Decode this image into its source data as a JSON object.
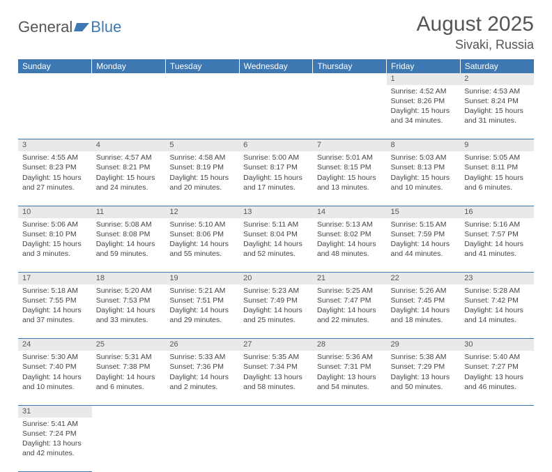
{
  "logo": {
    "part1": "General",
    "part2": "Blue"
  },
  "title": "August 2025",
  "location": "Sivaki, Russia",
  "colors": {
    "header_bg": "#3e78b2",
    "header_text": "#ffffff",
    "daynum_bg": "#e9e9e9",
    "row_border": "#3e78b2",
    "text": "#444444"
  },
  "weekdays": [
    "Sunday",
    "Monday",
    "Tuesday",
    "Wednesday",
    "Thursday",
    "Friday",
    "Saturday"
  ],
  "weeks": [
    [
      null,
      null,
      null,
      null,
      null,
      {
        "n": "1",
        "sr": "Sunrise: 4:52 AM",
        "ss": "Sunset: 8:26 PM",
        "d1": "Daylight: 15 hours",
        "d2": "and 34 minutes."
      },
      {
        "n": "2",
        "sr": "Sunrise: 4:53 AM",
        "ss": "Sunset: 8:24 PM",
        "d1": "Daylight: 15 hours",
        "d2": "and 31 minutes."
      }
    ],
    [
      {
        "n": "3",
        "sr": "Sunrise: 4:55 AM",
        "ss": "Sunset: 8:23 PM",
        "d1": "Daylight: 15 hours",
        "d2": "and 27 minutes."
      },
      {
        "n": "4",
        "sr": "Sunrise: 4:57 AM",
        "ss": "Sunset: 8:21 PM",
        "d1": "Daylight: 15 hours",
        "d2": "and 24 minutes."
      },
      {
        "n": "5",
        "sr": "Sunrise: 4:58 AM",
        "ss": "Sunset: 8:19 PM",
        "d1": "Daylight: 15 hours",
        "d2": "and 20 minutes."
      },
      {
        "n": "6",
        "sr": "Sunrise: 5:00 AM",
        "ss": "Sunset: 8:17 PM",
        "d1": "Daylight: 15 hours",
        "d2": "and 17 minutes."
      },
      {
        "n": "7",
        "sr": "Sunrise: 5:01 AM",
        "ss": "Sunset: 8:15 PM",
        "d1": "Daylight: 15 hours",
        "d2": "and 13 minutes."
      },
      {
        "n": "8",
        "sr": "Sunrise: 5:03 AM",
        "ss": "Sunset: 8:13 PM",
        "d1": "Daylight: 15 hours",
        "d2": "and 10 minutes."
      },
      {
        "n": "9",
        "sr": "Sunrise: 5:05 AM",
        "ss": "Sunset: 8:11 PM",
        "d1": "Daylight: 15 hours",
        "d2": "and 6 minutes."
      }
    ],
    [
      {
        "n": "10",
        "sr": "Sunrise: 5:06 AM",
        "ss": "Sunset: 8:10 PM",
        "d1": "Daylight: 15 hours",
        "d2": "and 3 minutes."
      },
      {
        "n": "11",
        "sr": "Sunrise: 5:08 AM",
        "ss": "Sunset: 8:08 PM",
        "d1": "Daylight: 14 hours",
        "d2": "and 59 minutes."
      },
      {
        "n": "12",
        "sr": "Sunrise: 5:10 AM",
        "ss": "Sunset: 8:06 PM",
        "d1": "Daylight: 14 hours",
        "d2": "and 55 minutes."
      },
      {
        "n": "13",
        "sr": "Sunrise: 5:11 AM",
        "ss": "Sunset: 8:04 PM",
        "d1": "Daylight: 14 hours",
        "d2": "and 52 minutes."
      },
      {
        "n": "14",
        "sr": "Sunrise: 5:13 AM",
        "ss": "Sunset: 8:02 PM",
        "d1": "Daylight: 14 hours",
        "d2": "and 48 minutes."
      },
      {
        "n": "15",
        "sr": "Sunrise: 5:15 AM",
        "ss": "Sunset: 7:59 PM",
        "d1": "Daylight: 14 hours",
        "d2": "and 44 minutes."
      },
      {
        "n": "16",
        "sr": "Sunrise: 5:16 AM",
        "ss": "Sunset: 7:57 PM",
        "d1": "Daylight: 14 hours",
        "d2": "and 41 minutes."
      }
    ],
    [
      {
        "n": "17",
        "sr": "Sunrise: 5:18 AM",
        "ss": "Sunset: 7:55 PM",
        "d1": "Daylight: 14 hours",
        "d2": "and 37 minutes."
      },
      {
        "n": "18",
        "sr": "Sunrise: 5:20 AM",
        "ss": "Sunset: 7:53 PM",
        "d1": "Daylight: 14 hours",
        "d2": "and 33 minutes."
      },
      {
        "n": "19",
        "sr": "Sunrise: 5:21 AM",
        "ss": "Sunset: 7:51 PM",
        "d1": "Daylight: 14 hours",
        "d2": "and 29 minutes."
      },
      {
        "n": "20",
        "sr": "Sunrise: 5:23 AM",
        "ss": "Sunset: 7:49 PM",
        "d1": "Daylight: 14 hours",
        "d2": "and 25 minutes."
      },
      {
        "n": "21",
        "sr": "Sunrise: 5:25 AM",
        "ss": "Sunset: 7:47 PM",
        "d1": "Daylight: 14 hours",
        "d2": "and 22 minutes."
      },
      {
        "n": "22",
        "sr": "Sunrise: 5:26 AM",
        "ss": "Sunset: 7:45 PM",
        "d1": "Daylight: 14 hours",
        "d2": "and 18 minutes."
      },
      {
        "n": "23",
        "sr": "Sunrise: 5:28 AM",
        "ss": "Sunset: 7:42 PM",
        "d1": "Daylight: 14 hours",
        "d2": "and 14 minutes."
      }
    ],
    [
      {
        "n": "24",
        "sr": "Sunrise: 5:30 AM",
        "ss": "Sunset: 7:40 PM",
        "d1": "Daylight: 14 hours",
        "d2": "and 10 minutes."
      },
      {
        "n": "25",
        "sr": "Sunrise: 5:31 AM",
        "ss": "Sunset: 7:38 PM",
        "d1": "Daylight: 14 hours",
        "d2": "and 6 minutes."
      },
      {
        "n": "26",
        "sr": "Sunrise: 5:33 AM",
        "ss": "Sunset: 7:36 PM",
        "d1": "Daylight: 14 hours",
        "d2": "and 2 minutes."
      },
      {
        "n": "27",
        "sr": "Sunrise: 5:35 AM",
        "ss": "Sunset: 7:34 PM",
        "d1": "Daylight: 13 hours",
        "d2": "and 58 minutes."
      },
      {
        "n": "28",
        "sr": "Sunrise: 5:36 AM",
        "ss": "Sunset: 7:31 PM",
        "d1": "Daylight: 13 hours",
        "d2": "and 54 minutes."
      },
      {
        "n": "29",
        "sr": "Sunrise: 5:38 AM",
        "ss": "Sunset: 7:29 PM",
        "d1": "Daylight: 13 hours",
        "d2": "and 50 minutes."
      },
      {
        "n": "30",
        "sr": "Sunrise: 5:40 AM",
        "ss": "Sunset: 7:27 PM",
        "d1": "Daylight: 13 hours",
        "d2": "and 46 minutes."
      }
    ],
    [
      {
        "n": "31",
        "sr": "Sunrise: 5:41 AM",
        "ss": "Sunset: 7:24 PM",
        "d1": "Daylight: 13 hours",
        "d2": "and 42 minutes."
      },
      null,
      null,
      null,
      null,
      null,
      null
    ]
  ]
}
